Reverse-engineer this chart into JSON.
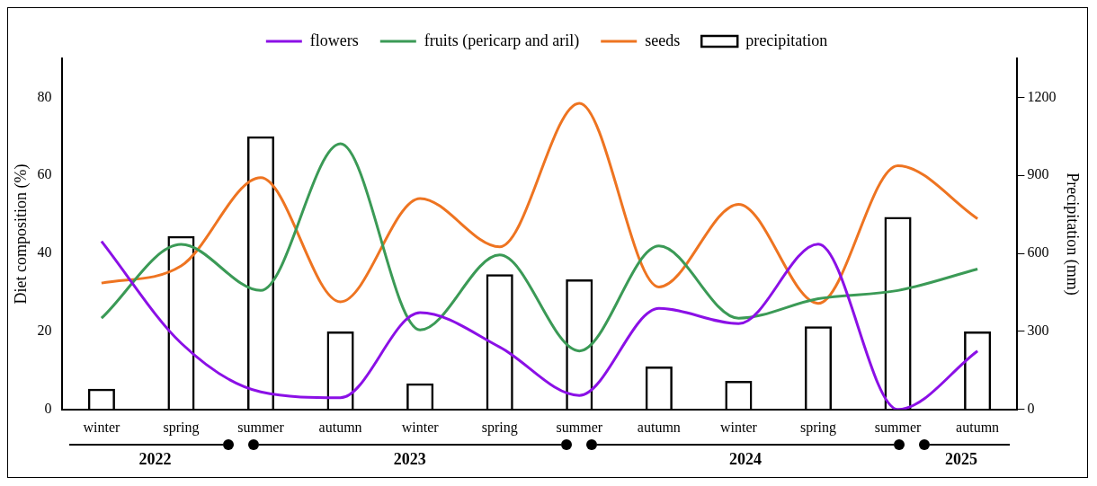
{
  "chart_data": {
    "type": "line",
    "ylabel": "Diet composition (%)",
    "y2label": "Precipitation (mm)",
    "categories": [
      "winter",
      "spring",
      "summer",
      "autumn",
      "winter",
      "spring",
      "summer",
      "autumn",
      "winter",
      "spring",
      "summer",
      "autumn"
    ],
    "series": [
      {
        "name": "flowers",
        "color": "#8b10e6",
        "values": [
          43.1,
          17,
          4.5,
          3,
          24.8,
          16,
          3.6,
          25.9,
          22,
          42.4,
          0,
          15
        ]
      },
      {
        "name": "fruits (pericarp and aril)",
        "color": "#3b9a56",
        "values": [
          23.4,
          42.3,
          30.5,
          68.1,
          20.4,
          39.6,
          15,
          41.9,
          23.4,
          28.4,
          30.5,
          36
        ]
      },
      {
        "name": "seeds",
        "color": "#ee7421",
        "values": [
          32.4,
          36.8,
          59.4,
          27.6,
          54.1,
          41.7,
          78.5,
          31.4,
          52.6,
          27.2,
          62.5,
          48.9
        ]
      },
      {
        "name": "precipitation",
        "type": "bar",
        "axis": "y2",
        "color": "#000000",
        "values": [
          80,
          667,
          1050,
          300,
          100,
          520,
          500,
          165,
          110,
          320,
          740,
          300
        ]
      }
    ],
    "ylim": [
      0,
      90
    ],
    "yticks": [
      0,
      20,
      40,
      60,
      80
    ],
    "y2lim": [
      0,
      1350
    ],
    "y2ticks": [
      0,
      300,
      600,
      900,
      1200
    ],
    "grid": false,
    "legend": "top",
    "marker": "none",
    "line_style": "solid",
    "annotations": [
      "2022",
      "2023",
      "2024",
      "2025"
    ]
  }
}
